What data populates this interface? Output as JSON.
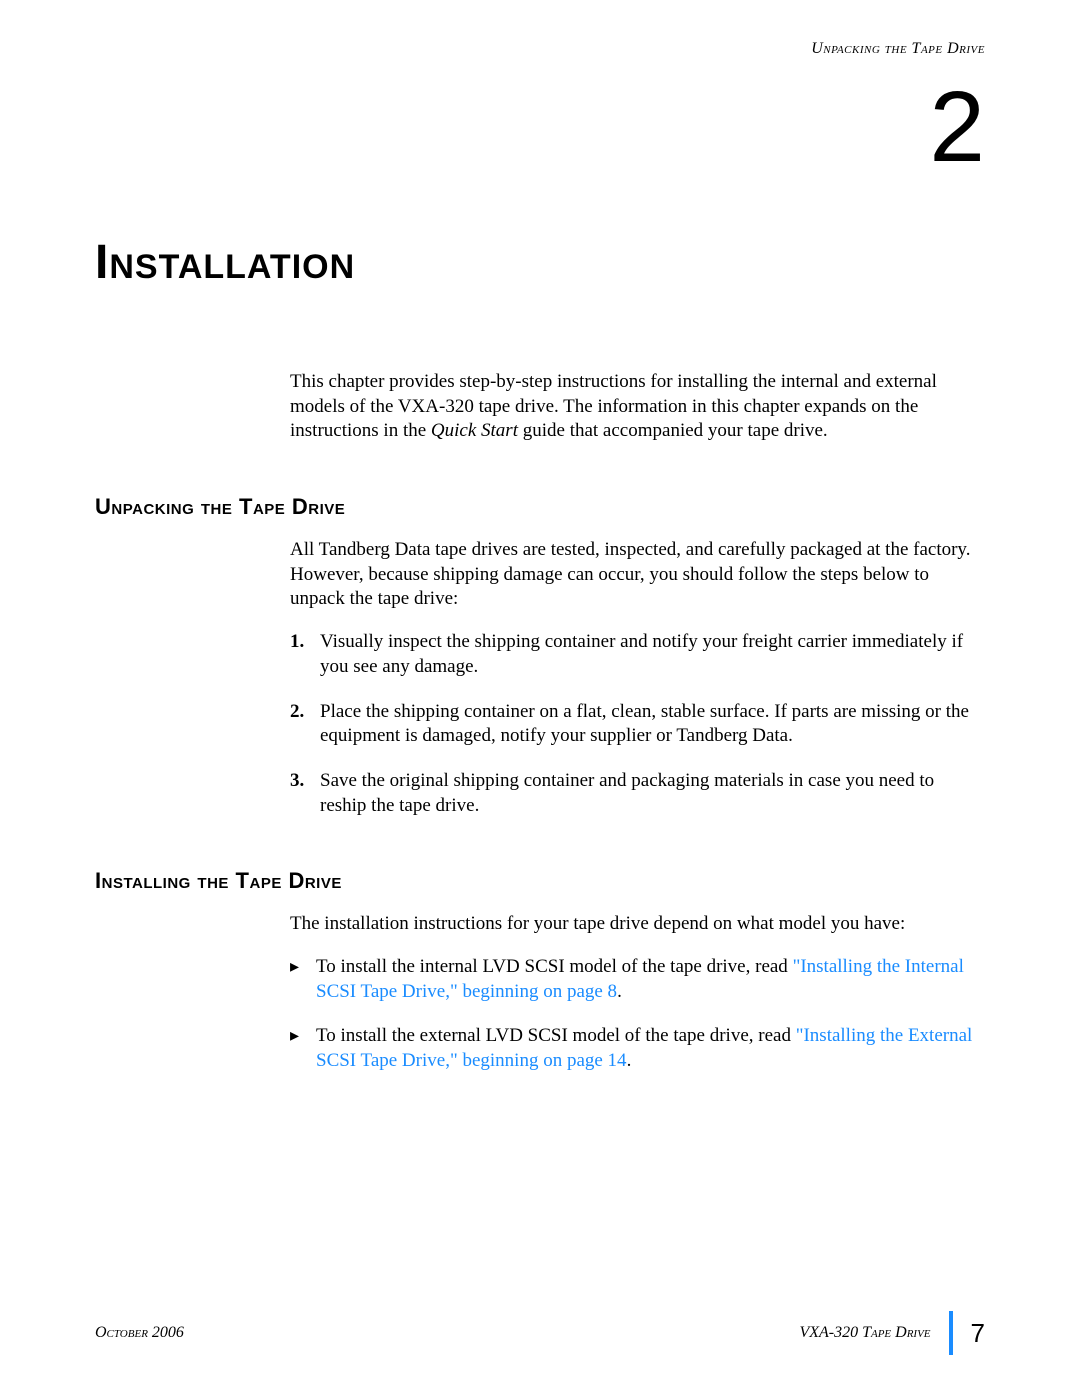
{
  "header": {
    "running_head": "Unpacking the Tape Drive"
  },
  "chapter": {
    "number": "2",
    "title": "Installation"
  },
  "intro": {
    "text_before_italic": "This chapter provides step-by-step instructions for installing the internal and external models of the VXA-320 tape drive. The information in this chapter expands on the instructions in the ",
    "italic": "Quick Start",
    "text_after_italic": " guide that accompanied your tape drive."
  },
  "section_unpacking": {
    "heading": "Unpacking the Tape Drive",
    "lead": "All Tandberg Data tape drives are tested, inspected, and carefully packaged at the factory. However, because shipping damage can occur, you should follow the steps below to unpack the tape drive:",
    "steps": [
      "Visually inspect the shipping container and notify your freight carrier immediately if you see any damage.",
      "Place the shipping container on a flat, clean, stable surface. If parts are missing or the equipment is damaged, notify your supplier or Tandberg Data.",
      "Save the original shipping container and packaging materials in case you need to reship the tape drive."
    ]
  },
  "section_installing": {
    "heading": "Installing the Tape Drive",
    "lead": "The installation instructions for your tape drive depend on what model you have:",
    "bullets": [
      {
        "plain": "To install the internal LVD SCSI model of the tape drive, read ",
        "link": "\"Installing the Internal SCSI Tape Drive,\" beginning on page 8",
        "tail": "."
      },
      {
        "plain": "To install the external LVD SCSI model of the tape drive, read ",
        "link": "\"Installing the External SCSI Tape Drive,\" beginning on page 14",
        "tail": "."
      }
    ]
  },
  "footer": {
    "date": "October 2006",
    "doc": "VXA-320 Tape Drive",
    "page": "7"
  },
  "colors": {
    "link": "#1a8cff",
    "rule": "#1a8cff",
    "text": "#000000",
    "bg": "#ffffff"
  }
}
